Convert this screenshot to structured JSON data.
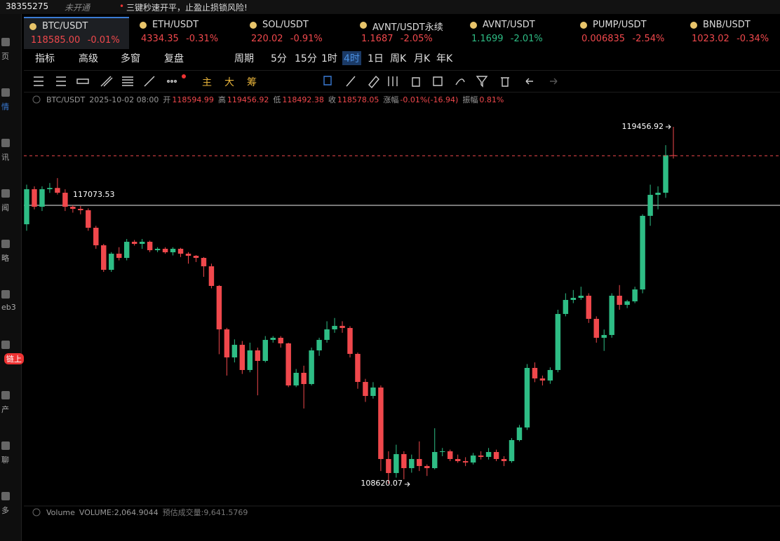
{
  "header": {
    "account": "38355275",
    "status": "未开通",
    "notice": "三键秒速开平，止盈止损锁风险!"
  },
  "tickers": [
    {
      "name": "BTC/USDT",
      "price": "118585.00",
      "change": "-0.01%",
      "color": "#f0484c"
    },
    {
      "name": "ETH/USDT",
      "price": "4334.35",
      "change": "-0.31%",
      "color": "#f0484c"
    },
    {
      "name": "SOL/USDT",
      "price": "220.02",
      "change": "-0.91%",
      "color": "#f0484c"
    },
    {
      "name": "AVNT/USDT永续",
      "price": "1.1687",
      "change": "-2.05%",
      "color": "#f0484c"
    },
    {
      "name": "AVNT/USDT",
      "price": "1.1699",
      "change": "-2.01%",
      "color": "#2ebd85"
    },
    {
      "name": "PUMP/USDT",
      "price": "0.006835",
      "change": "-2.54%",
      "color": "#f0484c"
    },
    {
      "name": "BNB/USDT",
      "price": "1023.02",
      "change": "-0.34%",
      "color": "#f0484c"
    }
  ],
  "toolbar": [
    "指标",
    "高级",
    "多窗",
    "复盘",
    "周期",
    "5分",
    "15分",
    "1时",
    "4时",
    "1日",
    "周K",
    "月K",
    "年K"
  ],
  "active_period": "4时",
  "draw_tools": [
    "主",
    "大",
    "筹"
  ],
  "sidebar": [
    "页",
    "情",
    "讯",
    "闻",
    "略",
    "eb3",
    "链上",
    "产",
    "聊",
    "多"
  ],
  "info_bar": [
    "BTC/USDT",
    "2025-10-02 08:00",
    "开",
    "118594.99",
    "高",
    "119456.92",
    "低",
    "118492.38",
    "收",
    "118578.05",
    "涨幅",
    "-0.01%(-16.94)",
    "振幅",
    "0.81%"
  ],
  "volume_bar": [
    "Volume",
    "VOLUME:2,064.9044",
    "预估成交量:9,641.5769"
  ],
  "chart_data": {
    "type": "candlestick",
    "up_color": "#2ebd85",
    "down_color": "#f0484c",
    "high_label": "119456.92",
    "low_label": "108620.07",
    "price_line": 117073.53,
    "ohlc": [
      [
        116497,
        117700,
        116300,
        117562
      ],
      [
        117562,
        117650,
        116950,
        117029
      ],
      [
        117029,
        117650,
        116900,
        117562
      ],
      [
        117562,
        117750,
        117450,
        117600
      ],
      [
        117600,
        117900,
        117400,
        117455
      ],
      [
        117455,
        117560,
        116900,
        117029
      ],
      [
        117029,
        117073.53,
        116850,
        116966
      ],
      [
        116966,
        117050,
        116800,
        116923
      ],
      [
        116923,
        116980,
        116300,
        116391
      ],
      [
        116391,
        116450,
        115750,
        115858
      ],
      [
        115858,
        115900,
        115050,
        115113
      ],
      [
        115113,
        115650,
        115050,
        115603
      ],
      [
        115603,
        115800,
        115400,
        115475
      ],
      [
        115475,
        116050,
        115400,
        115965
      ],
      [
        115965,
        116020,
        115850,
        115901
      ],
      [
        115901,
        116050,
        115750,
        115965
      ],
      [
        115965,
        116000,
        115650,
        115709
      ],
      [
        115709,
        115800,
        115650,
        115752
      ],
      [
        115752,
        115800,
        115600,
        115646
      ],
      [
        115646,
        115800,
        115550,
        115752
      ],
      [
        115752,
        115780,
        115500,
        115603
      ],
      [
        115603,
        115650,
        115300,
        115539
      ],
      [
        115539,
        115560,
        115350,
        115475
      ],
      [
        115475,
        115500,
        114900,
        115220
      ],
      [
        115220,
        115300,
        114550,
        114624
      ],
      [
        114624,
        114650,
        112550,
        113304
      ],
      [
        113304,
        113350,
        111900,
        112452
      ],
      [
        112452,
        113000,
        112300,
        112835
      ],
      [
        112835,
        112950,
        111950,
        112069
      ],
      [
        112069,
        112900,
        112000,
        112665
      ],
      [
        112665,
        112750,
        111300,
        112346
      ],
      [
        112346,
        113100,
        112300,
        112984
      ],
      [
        112984,
        113100,
        112900,
        113048
      ],
      [
        113048,
        113100,
        112750,
        112878
      ],
      [
        112878,
        112900,
        111550,
        111600
      ],
      [
        111600,
        112100,
        111550,
        111984
      ],
      [
        111984,
        112200,
        110900,
        111643
      ],
      [
        111643,
        112750,
        111600,
        112665
      ],
      [
        112665,
        113050,
        112500,
        112984
      ],
      [
        112984,
        113550,
        112900,
        113304
      ],
      [
        113304,
        113650,
        113200,
        113410
      ],
      [
        113410,
        113550,
        113200,
        113346
      ],
      [
        113346,
        113400,
        112450,
        112559
      ],
      [
        112559,
        112600,
        111500,
        111707
      ],
      [
        111707,
        111800,
        111100,
        111281
      ],
      [
        111281,
        111700,
        111200,
        111537
      ],
      [
        111537,
        111600,
        109000,
        109365
      ],
      [
        109365,
        109600,
        108620.07,
        108939
      ],
      [
        108939,
        109800,
        108800,
        109514
      ],
      [
        109514,
        109600,
        108750,
        109088
      ],
      [
        109088,
        109500,
        108950,
        109365
      ],
      [
        109365,
        109900,
        109000,
        109152
      ],
      [
        109152,
        109200,
        108850,
        109088
      ],
      [
        109088,
        110300,
        109050,
        109578
      ],
      [
        109578,
        109700,
        109450,
        109600
      ],
      [
        109600,
        109650,
        109300,
        109365
      ],
      [
        109365,
        109500,
        109250,
        109301
      ],
      [
        109301,
        109420,
        109150,
        109259
      ],
      [
        109259,
        109550,
        109200,
        109471
      ],
      [
        109471,
        109600,
        109350,
        109429
      ],
      [
        109429,
        109700,
        109350,
        109578
      ],
      [
        109578,
        109650,
        109300,
        109365
      ],
      [
        109365,
        109450,
        109150,
        109301
      ],
      [
        109301,
        110000,
        109250,
        109940
      ],
      [
        109940,
        110400,
        109900,
        110323
      ],
      [
        110323,
        112250,
        110250,
        112133
      ],
      [
        112133,
        112300,
        111700,
        111813
      ],
      [
        111813,
        111900,
        111600,
        111750
      ],
      [
        111750,
        112150,
        111650,
        112069
      ],
      [
        112069,
        113900,
        112000,
        113772
      ],
      [
        113772,
        114400,
        113700,
        114198
      ],
      [
        114198,
        114500,
        114100,
        114262
      ],
      [
        114262,
        114600,
        114200,
        114326
      ],
      [
        114326,
        114400,
        113500,
        113623
      ],
      [
        113623,
        113700,
        112900,
        113048
      ],
      [
        113048,
        113300,
        112650,
        113133
      ],
      [
        113133,
        114400,
        113050,
        114326
      ],
      [
        114326,
        114650,
        113900,
        114049
      ],
      [
        114049,
        114200,
        113950,
        114155
      ],
      [
        114155,
        114600,
        114100,
        114517
      ],
      [
        114517,
        116800,
        114400,
        116753
      ],
      [
        116753,
        117700,
        116450,
        117391
      ],
      [
        117391,
        117650,
        116950,
        117455
      ],
      [
        117455,
        118900,
        117300,
        118594.99
      ],
      [
        118594.99,
        119456.92,
        118492.38,
        118578.05
      ]
    ]
  }
}
